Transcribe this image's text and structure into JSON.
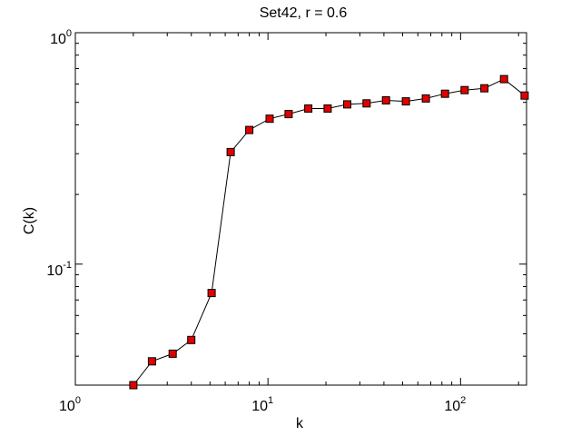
{
  "chart_data": {
    "type": "line",
    "title": "Set42, r = 0.6",
    "xlabel": "k",
    "ylabel": "C(k)",
    "x_scale": "log",
    "y_scale": "log",
    "xlim": [
      1,
      220
    ],
    "ylim": [
      0.03,
      1
    ],
    "grid": false,
    "legend": "none",
    "x_ticks": [
      {
        "value": 1,
        "base": "10",
        "exp": "0"
      },
      {
        "value": 10,
        "base": "10",
        "exp": "1"
      },
      {
        "value": 100,
        "base": "10",
        "exp": "2"
      }
    ],
    "y_ticks": [
      {
        "value": 0.1,
        "base": "10",
        "exp": "-1"
      },
      {
        "value": 1,
        "base": "10",
        "exp": "0"
      }
    ],
    "marker_color": "#e00000",
    "line_color": "#000000",
    "series": [
      {
        "x": [
          2,
          2.5,
          3.2,
          4,
          5.1,
          6.4,
          8,
          10.2,
          12.8,
          16.2,
          20.4,
          25.8,
          32.5,
          41,
          52,
          66,
          83,
          105,
          133,
          168,
          215
        ],
        "y": [
          0.03,
          0.038,
          0.041,
          0.047,
          0.075,
          0.305,
          0.38,
          0.425,
          0.445,
          0.47,
          0.47,
          0.49,
          0.495,
          0.51,
          0.505,
          0.52,
          0.545,
          0.565,
          0.575,
          0.63,
          0.535
        ]
      }
    ]
  }
}
